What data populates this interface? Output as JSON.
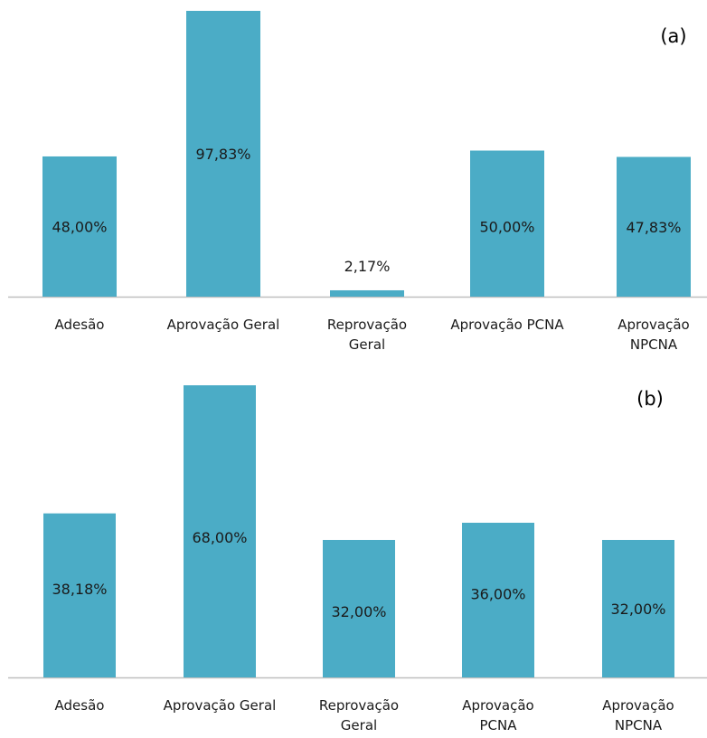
{
  "colors": {
    "bar": "#4bacc6",
    "axis": "#bfbfbf",
    "text": "#1a1a1a"
  },
  "chart_data": [
    {
      "type": "bar",
      "panel_label": "(a)",
      "categories": [
        "Adesão",
        "Aprovação Geral",
        "Reprovação Geral",
        "Aprovação PCNA",
        "Aprovação NPCNA"
      ],
      "category_lines": [
        [
          "Adesão"
        ],
        [
          "Aprovação Geral"
        ],
        [
          "Reprovação",
          "Geral"
        ],
        [
          "Aprovação PCNA"
        ],
        [
          "Aprovação",
          "NPCNA"
        ]
      ],
      "values": [
        48.0,
        97.83,
        2.17,
        50.0,
        47.83
      ],
      "value_labels": [
        "48,00%",
        "97,83%",
        "2,17%",
        "50,00%",
        "47,83%"
      ],
      "ylim": [
        0,
        100
      ],
      "grid": false,
      "legend": "none"
    },
    {
      "type": "bar",
      "panel_label": "(b)",
      "categories": [
        "Adesão",
        "Aprovação Geral",
        "Reprovação Geral",
        "Aprovação PCNA",
        "Aprovação NPCNA"
      ],
      "category_lines": [
        [
          "Adesão"
        ],
        [
          "Aprovação Geral"
        ],
        [
          "Reprovação",
          "Geral"
        ],
        [
          "Aprovação",
          "PCNA"
        ],
        [
          "Aprovação",
          "NPCNA"
        ]
      ],
      "values": [
        38.18,
        68.0,
        32.0,
        36.0,
        32.0
      ],
      "value_labels": [
        "38,18%",
        "68,00%",
        "32,00%",
        "36,00%",
        "32,00%"
      ],
      "ylim": [
        0,
        70
      ],
      "grid": false,
      "legend": "none"
    }
  ]
}
